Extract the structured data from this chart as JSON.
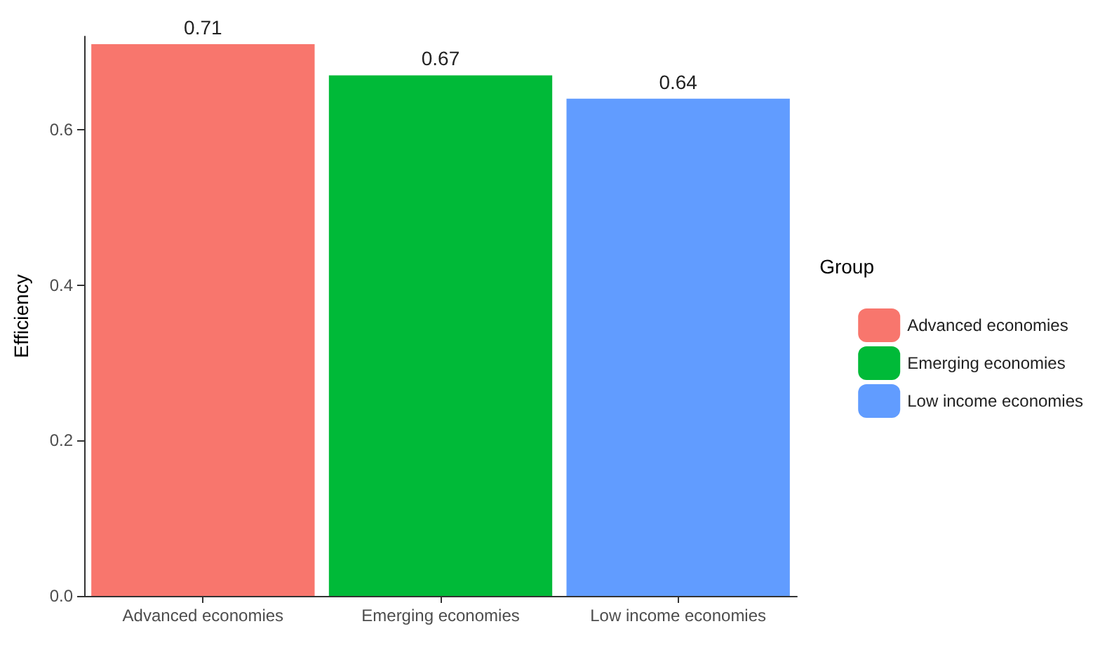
{
  "chart_data": {
    "type": "bar",
    "ylabel": "Efficiency",
    "legend_title": "Group",
    "categories": [
      "Advanced economies",
      "Emerging economies",
      "Low income economies"
    ],
    "series": [
      {
        "name": "Advanced economies",
        "color": "#f8766d",
        "values": [
          0.71,
          null,
          null
        ]
      },
      {
        "name": "Emerging economies",
        "color": "#00ba38",
        "values": [
          null,
          0.67,
          null
        ]
      },
      {
        "name": "Low income economies",
        "color": "#619cff",
        "values": [
          null,
          null,
          0.64
        ]
      }
    ],
    "stacked": true,
    "data_labels": true,
    "ylim": [
      0,
      0.72
    ],
    "yticks": [
      {
        "value": 0,
        "label": "0.0"
      },
      {
        "value": 0.2,
        "label": "0.2"
      },
      {
        "value": 0.4,
        "label": "0.4"
      },
      {
        "value": 0.6,
        "label": "0.6"
      }
    ],
    "grid": false,
    "legend": "right"
  }
}
